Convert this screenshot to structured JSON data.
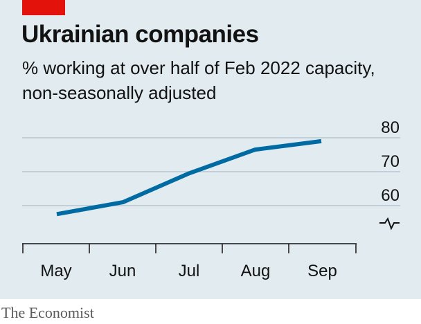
{
  "header": {
    "title": "Ukrainian companies",
    "subtitle": "% working at over half of Feb 2022 capacity, non-seasonally adjusted"
  },
  "footer": {
    "source": "The Economist"
  },
  "colors": {
    "accent": "#e3120b",
    "line": "#006ba2",
    "background": "#e1ebf0",
    "gridline": "#b7c6cf"
  },
  "chart_data": {
    "type": "line",
    "title": "Ukrainian companies",
    "subtitle": "% working at over half of Feb 2022 capacity, non-seasonally adjusted",
    "categories": [
      "May",
      "Jun",
      "Jul",
      "Aug",
      "Sep"
    ],
    "series": [
      {
        "values": [
          57.5,
          61,
          69.5,
          76.5,
          79
        ]
      }
    ],
    "yticks": [
      60,
      70,
      80
    ],
    "ylim": [
      52,
      82
    ],
    "y_axis_break": true,
    "y_axis_side": "right",
    "grid": true,
    "legend": "none"
  }
}
